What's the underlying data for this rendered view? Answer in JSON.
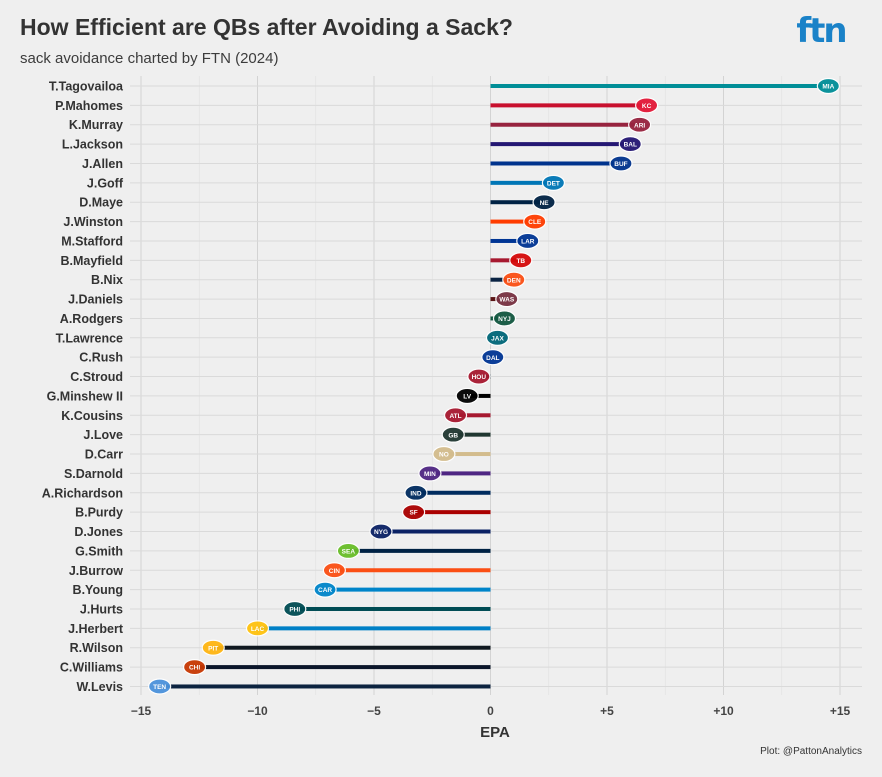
{
  "title": "How Efficient are QBs after Avoiding a Sack?",
  "subtitle": "sack avoidance charted by FTN (2024)",
  "brand": "ftn",
  "caption": "Plot: @PattonAnalytics",
  "colors": {
    "background": "#efefef",
    "grid": "#d6d6d6",
    "text": "#333333",
    "brand": "#1a82c8"
  },
  "chart_data": {
    "type": "bar",
    "orientation": "horizontal",
    "title": "How Efficient are QBs after Avoiding a Sack?",
    "subtitle": "sack avoidance charted by FTN (2024)",
    "xlabel": "EPA",
    "ylabel": "",
    "xlim": [
      -15.5,
      15.9
    ],
    "xticks": [
      -15,
      -10,
      -5,
      0,
      5,
      10,
      15
    ],
    "xtick_labels": [
      "−15",
      "−10",
      "−5",
      "0",
      "+5",
      "+10",
      "+15"
    ],
    "grid": true,
    "categories": [
      "T.Tagovailoa",
      "P.Mahomes",
      "K.Murray",
      "L.Jackson",
      "J.Allen",
      "J.Goff",
      "D.Maye",
      "J.Winston",
      "M.Stafford",
      "B.Mayfield",
      "B.Nix",
      "J.Daniels",
      "A.Rodgers",
      "T.Lawrence",
      "C.Rush",
      "C.Stroud",
      "G.Minshew II",
      "K.Cousins",
      "J.Love",
      "D.Carr",
      "S.Darnold",
      "A.Richardson",
      "B.Purdy",
      "D.Jones",
      "G.Smith",
      "J.Burrow",
      "B.Young",
      "J.Hurts",
      "J.Herbert",
      "R.Wilson",
      "C.Williams",
      "W.Levis"
    ],
    "values": [
      14.5,
      6.7,
      6.4,
      6.0,
      5.6,
      2.7,
      2.3,
      1.9,
      1.6,
      1.3,
      1.0,
      0.7,
      0.6,
      0.3,
      0.1,
      -0.5,
      -1.0,
      -1.5,
      -1.6,
      -2.0,
      -2.6,
      -3.2,
      -3.3,
      -4.7,
      -6.1,
      -6.7,
      -7.1,
      -8.4,
      -10.0,
      -11.9,
      -12.7,
      -14.2
    ],
    "teams": [
      "MIA",
      "KC",
      "ARI",
      "BAL",
      "BUF",
      "DET",
      "NE",
      "CLE",
      "LAR",
      "TB",
      "DEN",
      "WAS",
      "NYJ",
      "JAX",
      "DAL",
      "HOU",
      "LV",
      "ATL",
      "GB",
      "NO",
      "MIN",
      "IND",
      "SF",
      "NYG",
      "SEA",
      "CIN",
      "CAR",
      "PHI",
      "LAC",
      "PIT",
      "CHI",
      "TEN"
    ],
    "bar_colors": [
      "#008e97",
      "#c8102e",
      "#97233f",
      "#241773",
      "#00338d",
      "#0076b6",
      "#002244",
      "#ff3c00",
      "#003594",
      "#a71930",
      "#0a2343",
      "#5a1414",
      "#125740",
      "#006778",
      "#041e42",
      "#03202f",
      "#000000",
      "#a71930",
      "#203731",
      "#d3bc8d",
      "#4f2683",
      "#002c5f",
      "#aa0000",
      "#0b2265",
      "#002244",
      "#fb4f14",
      "#0085ca",
      "#004c54",
      "#0080c6",
      "#101820",
      "#0b162a",
      "#0c2340"
    ],
    "marker_colors": [
      "#008e97",
      "#e31837",
      "#97233f",
      "#241773",
      "#00338d",
      "#0076b6",
      "#002244",
      "#ff3c00",
      "#003594",
      "#d50a0a",
      "#fb4f14",
      "#773141",
      "#125740",
      "#006778",
      "#003594",
      "#a71930",
      "#000000",
      "#a71930",
      "#203731",
      "#d3bc8d",
      "#4f2683",
      "#002c5f",
      "#aa0000",
      "#0b2265",
      "#69be28",
      "#fb4f14",
      "#0085ca",
      "#004c54",
      "#ffc20e",
      "#ffb612",
      "#c83803",
      "#4b92db"
    ]
  }
}
